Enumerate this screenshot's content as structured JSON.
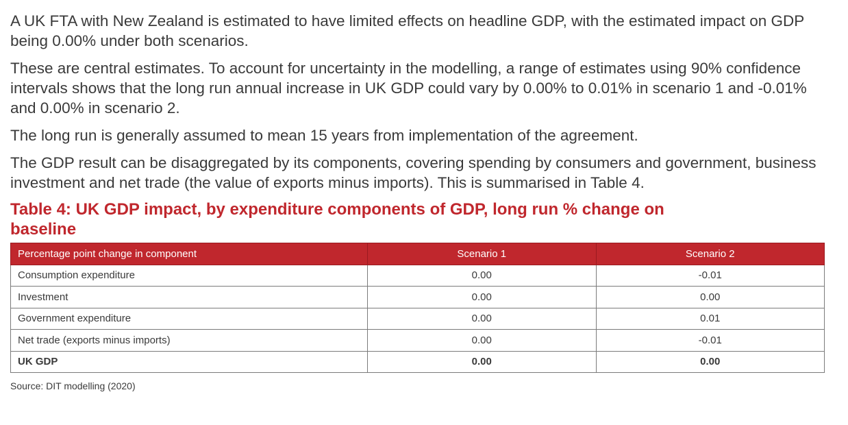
{
  "paragraphs": [
    "A UK FTA with New Zealand is estimated to have limited effects on headline GDP, with the estimated impact on GDP being 0.00% under both scenarios.",
    "These are central estimates. To account for uncertainty in the modelling, a range of estimates using 90% confidence intervals shows that the long run annual increase in UK GDP could vary by 0.00% to 0.01% in scenario 1 and -0.01% and 0.00% in scenario 2.",
    "The long run is generally assumed to mean 15 years from implementation of the agreement.",
    "The GDP result can be disaggregated by its components, covering spending by consumers and government, business investment and net trade (the value of exports minus imports). This is summarised in Table 4."
  ],
  "table": {
    "title": "Table 4: UK GDP impact, by expenditure components of GDP, long run % change on baseline",
    "headers": [
      "Percentage point change in component",
      "Scenario 1",
      "Scenario 2"
    ],
    "rows": [
      [
        "Consumption expenditure",
        "0.00",
        "-0.01"
      ],
      [
        "Investment",
        "0.00",
        "0.00"
      ],
      [
        "Government expenditure",
        "0.00",
        "0.01"
      ],
      [
        "Net trade (exports minus imports)",
        "0.00",
        "-0.01"
      ],
      [
        "UK GDP",
        "0.00",
        "0.00"
      ]
    ],
    "header_color": "#c0272d",
    "title_color": "#c0272d"
  },
  "source": "Source: DIT modelling (2020)"
}
